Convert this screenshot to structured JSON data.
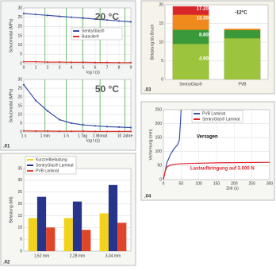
{
  "chart_data": [
    {
      "type": "line",
      "title": "20 °C",
      "x": [
        0,
        1,
        2,
        3,
        4,
        5,
        6,
        7,
        8,
        9
      ],
      "series": [
        {
          "name": "SentryGlas®",
          "color": "#3a4fa8",
          "values": [
            27,
            26.5,
            26,
            25.5,
            25,
            24.5,
            24,
            23.5,
            23,
            22.5
          ]
        },
        {
          "name": "Butacite®",
          "color": "#d8332a",
          "values": [
            1,
            1,
            0.8,
            0.8,
            0.7,
            0.7,
            0.6,
            0.6,
            0.5,
            0.5
          ]
        }
      ],
      "xlim": [
        0,
        9
      ],
      "xticks": [
        0,
        1,
        2,
        3,
        4,
        5,
        6,
        7,
        8,
        9
      ],
      "xlabel": "log t (s)",
      "ylim": [
        0,
        30
      ],
      "yticks": [
        0,
        5,
        10,
        15,
        20,
        25,
        30
      ],
      "ylabel": "Schubmodul (MPa)",
      "vlines": [
        1.78,
        3.56,
        4.94,
        6.41,
        8.5
      ],
      "grid": true,
      "legend": "center-right"
    },
    {
      "type": "line",
      "title": "50 °C",
      "panel": ".01",
      "x": [
        0,
        1,
        2,
        3,
        4,
        5,
        6,
        7,
        8,
        9
      ],
      "series": [
        {
          "color": "#3a4fa8",
          "values": [
            27,
            18,
            12,
            7,
            5,
            4,
            3.5,
            3,
            2.8,
            2.5
          ]
        },
        {
          "color": "#d8332a",
          "values": [
            0.6,
            0.5,
            0.5,
            0.4,
            0.4,
            0.4,
            0.3,
            0.3,
            0.3,
            0.3
          ]
        }
      ],
      "xlim": [
        0,
        9
      ],
      "xticks": [
        {
          "value": 0,
          "label": "1 s"
        },
        {
          "value": 1.78,
          "label": "1 min"
        },
        {
          "value": 3.56,
          "label": "1 h"
        },
        {
          "value": 4.94,
          "label": "1 Tag"
        },
        {
          "value": 6.41,
          "label": "1 Monat"
        },
        {
          "value": 8.5,
          "label": "10 Jahre"
        }
      ],
      "xlabel": "log t (s)",
      "ylim": [
        0,
        30
      ],
      "yticks": [
        0,
        5,
        10,
        15,
        20,
        25,
        30
      ],
      "ylabel": "Schubmodul (MPa)",
      "vlines": [
        1.78,
        3.56,
        4.94,
        6.41,
        8.5
      ],
      "grid": true
    },
    {
      "type": "bar",
      "panel": ".02",
      "categories": [
        "1,52 mm",
        "2,28 mm",
        "3,04 mm"
      ],
      "series": [
        {
          "name": "Kurzzeitbelastung",
          "color": "#f2d21c",
          "values": [
            14,
            14,
            16
          ]
        },
        {
          "name": "SentryGlas® Laminat",
          "color": "#27348b",
          "values": [
            23,
            21,
            28
          ]
        },
        {
          "name": "PVB Laminat",
          "color": "#e0452a",
          "values": [
            10,
            9,
            12
          ]
        }
      ],
      "ylim": [
        0,
        35
      ],
      "yticks": [
        0,
        5,
        10,
        15,
        20,
        25,
        30,
        35
      ],
      "ylabel": "Belastung (kN)",
      "grid": true,
      "legend": "top-left"
    },
    {
      "type": "bar",
      "overlap": true,
      "panel": ".03",
      "categories": [
        "SentryGlas®",
        "PVB"
      ],
      "series": [
        {
          "color": "#d8262b",
          "values": [
            19.6,
            null
          ]
        },
        {
          "color": "#f08a1c",
          "values": [
            17.3,
            13.6
          ]
        },
        {
          "color": "#3a9a3a",
          "values": [
            13.3,
            13.2
          ]
        },
        {
          "color": "#9cc43c",
          "values": [
            9.5,
            11
          ]
        }
      ],
      "ylim": [
        0,
        20
      ],
      "yticks": [
        0,
        5,
        10,
        15,
        20
      ],
      "ylabel": "Belastung bis Bruch",
      "grid": true,
      "annotations": [
        "17.200 N",
        "13.300 N",
        "8.800 N",
        "4.900 N",
        "-12°C"
      ]
    },
    {
      "type": "line",
      "panel": ".04",
      "series": [
        {
          "name": "PVB Laminat",
          "color": "#3a4fa8",
          "x": [
            0,
            5,
            10,
            20,
            30,
            40,
            45,
            48,
            50
          ],
          "values": [
            0,
            30,
            60,
            90,
            110,
            125,
            140,
            200,
            250
          ]
        },
        {
          "name": "SentryGlas® Laminat",
          "color": "#e0202a",
          "x": [
            0,
            5,
            10,
            20,
            40,
            80,
            150,
            300
          ],
          "values": [
            0,
            30,
            45,
            52,
            56,
            58,
            60,
            62
          ]
        }
      ],
      "xlim": [
        0,
        300
      ],
      "xticks": [
        0,
        50,
        100,
        150,
        200,
        250,
        300
      ],
      "xlabel": "Zeit (s)",
      "ylim": [
        0,
        250
      ],
      "yticks": [
        0,
        50,
        100,
        150,
        200,
        250
      ],
      "ylabel": "Verformung (mm)",
      "grid": true,
      "legend": "top-left",
      "annotations": [
        "Versagen",
        "Lastaufbringung auf 3.000 N"
      ]
    }
  ]
}
